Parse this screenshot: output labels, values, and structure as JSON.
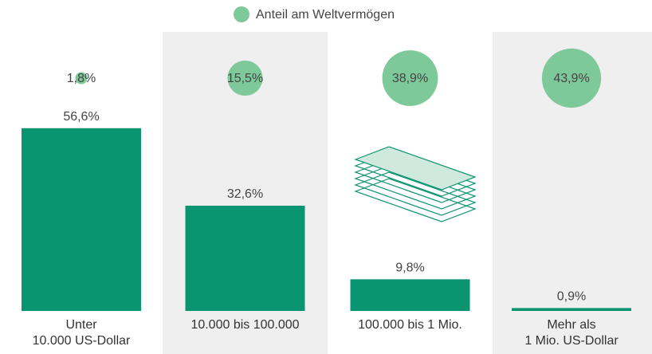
{
  "chart_data": {
    "type": "bar",
    "categories": [
      "Unter\n10.000 US-Dollar",
      "10.000 bis 100.000",
      "100.000 bis 1 Mio.",
      "Mehr als\n1 Mio. US-Dollar"
    ],
    "bars": {
      "color": "#0b9470",
      "values": [
        56.6,
        32.6,
        9.8,
        0.9
      ],
      "value_labels": [
        "56,6%",
        "32,6%",
        "9,8%",
        "0,9%"
      ]
    },
    "bubbles": {
      "name": "Anteil am Weltvermögen",
      "color": "#7ec99a",
      "values": [
        1.8,
        15.5,
        38.9,
        43.9
      ],
      "value_labels": [
        "1,8%",
        "15,5%",
        "38,9%",
        "43,9%"
      ]
    }
  }
}
